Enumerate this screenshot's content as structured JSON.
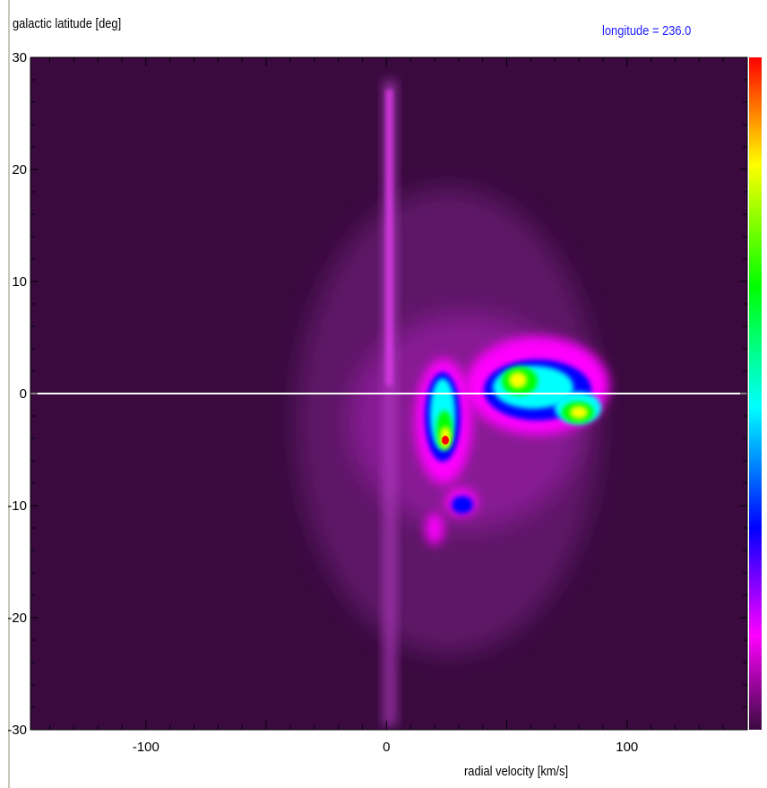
{
  "header": {
    "ylabel": "galactic latitude [deg]",
    "longitude_text": "longitude = 236.0"
  },
  "footer": {
    "xlabel": "radial velocity [km/s]"
  },
  "chart_data": {
    "type": "heatmap",
    "title": "",
    "xlabel": "radial velocity [km/s]",
    "ylabel": "galactic latitude [deg]",
    "annotation": "longitude = 236.0",
    "xlim": [
      -148,
      150
    ],
    "ylim": [
      -30,
      30
    ],
    "x_ticks": [
      -100,
      0,
      100
    ],
    "y_ticks": [
      30,
      20,
      10,
      0,
      -10,
      -20,
      -30
    ],
    "reference_line_y": 0,
    "colormap": [
      "#3a0a3f",
      "#ff00ff",
      "#0000ff",
      "#00ffff",
      "#00ff00",
      "#ffff00",
      "#ff0000"
    ],
    "background_color": "#3a0a3f",
    "emission_ridge_velocity_kms": 0,
    "emission_ridge_lat_range": [
      -30,
      30
    ],
    "peaks": [
      {
        "velocity": 25,
        "latitude": -4,
        "level": "red"
      },
      {
        "velocity": 25,
        "latitude": 0.5,
        "level": "cyan"
      },
      {
        "velocity": 55,
        "latitude": 1.5,
        "level": "yellow"
      },
      {
        "velocity": 80,
        "latitude": -2,
        "level": "yellow"
      },
      {
        "velocity": 33,
        "latitude": -10,
        "level": "cyan"
      }
    ]
  }
}
